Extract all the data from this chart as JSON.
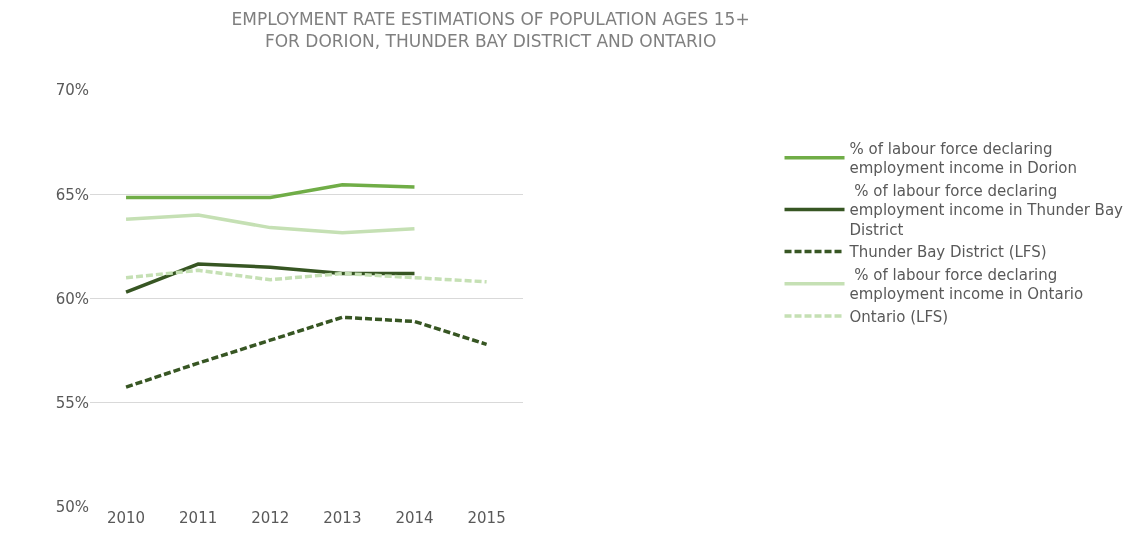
{
  "chart_data": {
    "type": "line",
    "title": "EMPLOYMENT RATE ESTIMATIONS OF POPULATION AGES 15+\nFOR DORION, THUNDER BAY DISTRICT AND ONTARIO",
    "categories": [
      "2010",
      "2011",
      "2012",
      "2013",
      "2014",
      "2015"
    ],
    "series": [
      {
        "name": "% of labour force declaring employment income in Dorion",
        "color": "#70ad47",
        "line_style": "solid",
        "values": [
          64.85,
          64.85,
          64.85,
          65.45,
          65.35,
          null
        ]
      },
      {
        "name": " % of labour force declaring employment income in Thunder Bay District",
        "color": "#375623",
        "line_style": "solid",
        "values": [
          60.3,
          61.65,
          61.5,
          61.2,
          61.2,
          null
        ]
      },
      {
        "name": "Thunder Bay District (LFS)",
        "color": "#375623",
        "line_style": "dashed",
        "values": [
          55.75,
          56.9,
          58.0,
          59.1,
          58.9,
          57.8
        ]
      },
      {
        "name": " % of labour force declaring employment income in Ontario",
        "color": "#c5e0b4",
        "line_style": "solid",
        "values": [
          63.8,
          64.0,
          63.4,
          63.15,
          63.35,
          null
        ]
      },
      {
        "name": "Ontario (LFS)",
        "color": "#c5e0b4",
        "line_style": "dashed",
        "values": [
          61.0,
          61.35,
          60.9,
          61.2,
          61.0,
          60.8
        ]
      }
    ],
    "ylim": [
      50,
      70
    ],
    "yticks": [
      {
        "value": 50,
        "label": "50%"
      },
      {
        "value": 55,
        "label": "55%"
      },
      {
        "value": 60,
        "label": "60%"
      },
      {
        "value": 65,
        "label": "65%"
      },
      {
        "value": 70,
        "label": "70%"
      }
    ],
    "grid": "y",
    "legend": "right",
    "marker": "none"
  }
}
